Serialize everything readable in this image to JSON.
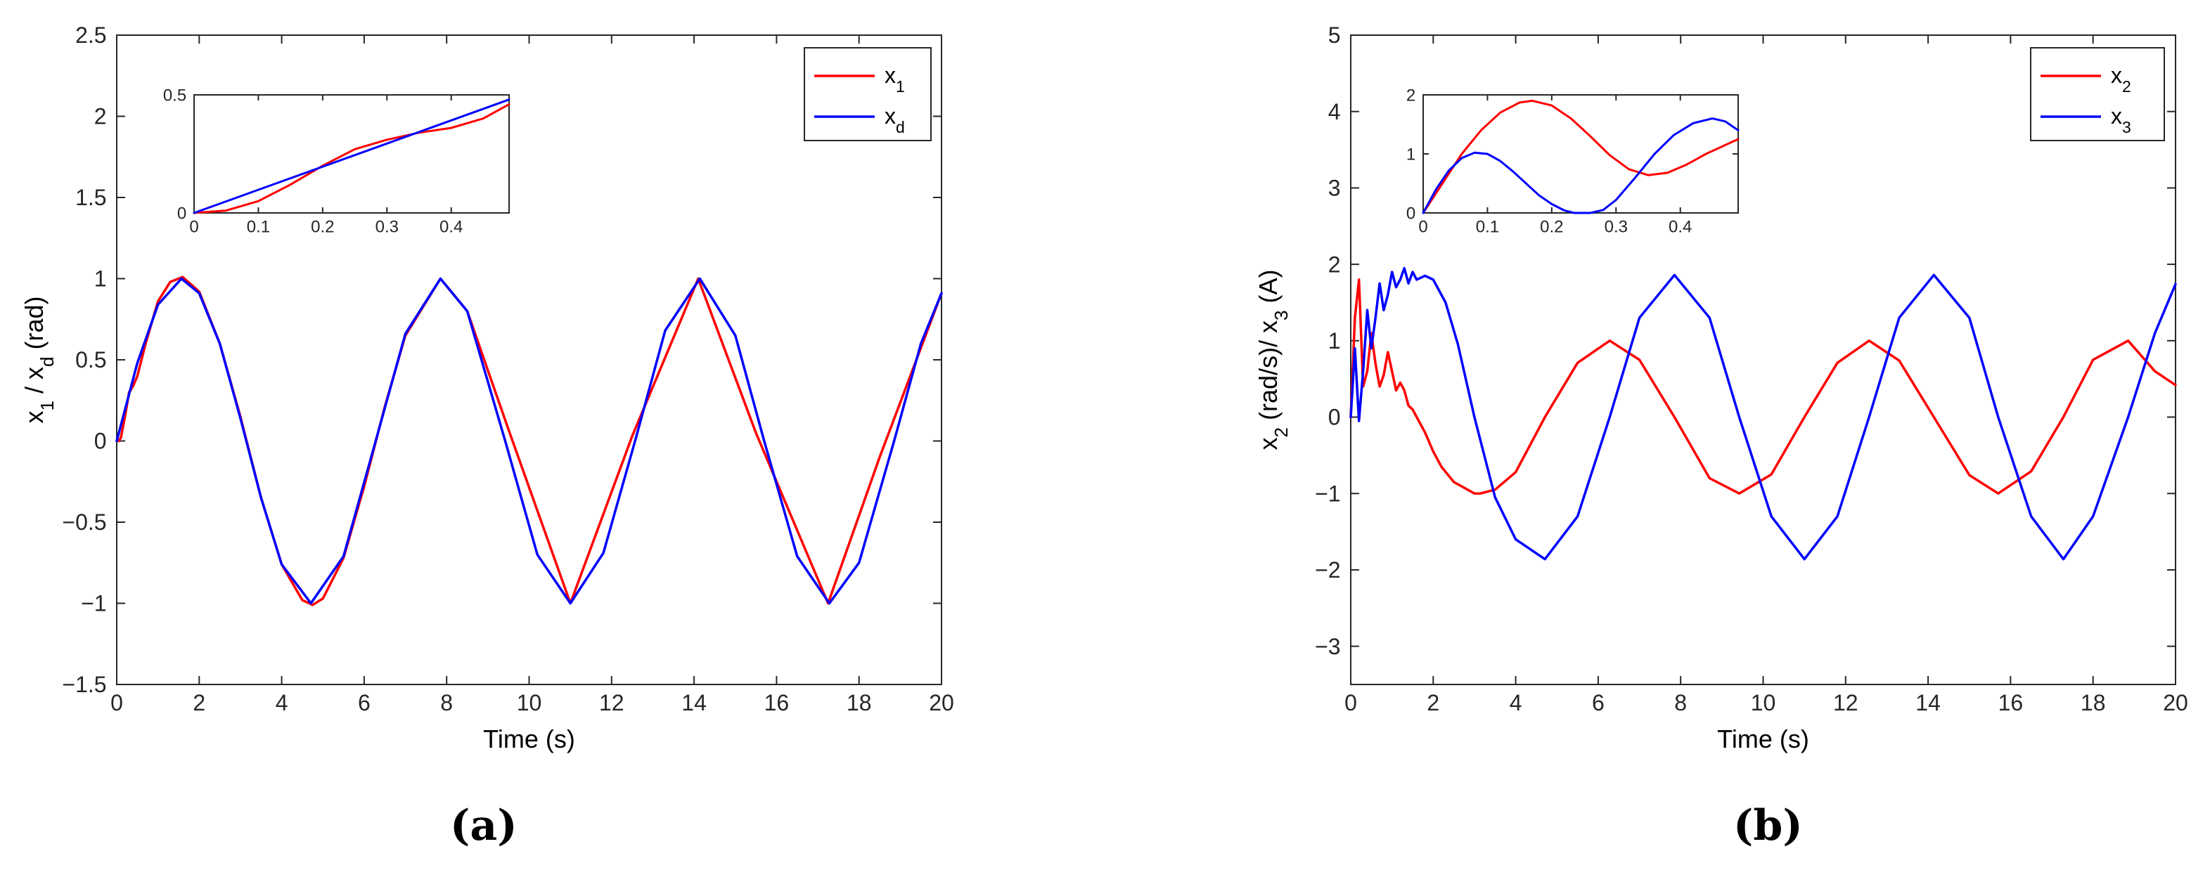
{
  "chart_data": [
    {
      "id": "a",
      "type": "line",
      "panel_label": "(a)",
      "title": "",
      "xlabel": "Time (s)",
      "ylabel": "x_1 / x_d (rad)",
      "xlim": [
        0,
        20
      ],
      "ylim": [
        -1.5,
        2.5
      ],
      "xticks": [
        0,
        2,
        4,
        6,
        8,
        10,
        12,
        14,
        16,
        18,
        20
      ],
      "xtick_labels": [
        "0",
        "2",
        "4",
        "6",
        "8",
        "10",
        "12",
        "14",
        "16",
        "18",
        "20"
      ],
      "yticks": [
        -1.5,
        -1,
        -0.5,
        0,
        0.5,
        1,
        1.5,
        2,
        2.5
      ],
      "ytick_labels": [
        "−1.5",
        "−1",
        "−0.5",
        "0",
        "0.5",
        "1",
        "1.5",
        "2",
        "2.5"
      ],
      "grid": false,
      "legend_position": "top-right",
      "series": [
        {
          "name": "x_1",
          "color": "#ff0000",
          "x": [
            0,
            0.05,
            0.1,
            0.2,
            0.3,
            0.4,
            0.5,
            0.7,
            1.0,
            1.3,
            1.6,
            2.0,
            2.5,
            3.0,
            3.5,
            4.0,
            4.5,
            4.75,
            5.0,
            5.5,
            6.0,
            6.5,
            7.0,
            7.85,
            8.5,
            9.5,
            11.0,
            12.5,
            14.1,
            15.5,
            17.25,
            18.5,
            20.0
          ],
          "y": [
            0,
            0.0,
            0.02,
            0.15,
            0.3,
            0.34,
            0.4,
            0.6,
            0.86,
            0.98,
            1.01,
            0.92,
            0.6,
            0.15,
            -0.35,
            -0.76,
            -0.98,
            -1.01,
            -0.97,
            -0.72,
            -0.28,
            0.21,
            0.65,
            1.0,
            0.8,
            0.07,
            -1.0,
            0.03,
            1.0,
            0.05,
            -1.0,
            -0.1,
            0.91
          ]
        },
        {
          "name": "x_d",
          "color": "#0000ff",
          "x": [
            0,
            0.5,
            1.0,
            1.57,
            2.0,
            2.5,
            3.0,
            3.5,
            4.0,
            4.71,
            5.5,
            6.28,
            7.0,
            7.85,
            8.5,
            9.42,
            10.2,
            11.0,
            11.8,
            12.57,
            13.3,
            14.14,
            15.0,
            15.7,
            16.5,
            17.28,
            18.0,
            18.85,
            19.5,
            20.0
          ],
          "y": [
            0,
            0.48,
            0.84,
            1.0,
            0.91,
            0.6,
            0.14,
            -0.35,
            -0.76,
            -1.0,
            -0.71,
            0.0,
            0.66,
            1.0,
            0.8,
            0.0,
            -0.7,
            -1.0,
            -0.69,
            0.0,
            0.68,
            1.0,
            0.65,
            0.0,
            -0.71,
            -1.0,
            -0.75,
            0.0,
            0.6,
            0.91
          ]
        }
      ],
      "inset": {
        "xlim": [
          0,
          0.49
        ],
        "ylim": [
          0,
          0.5
        ],
        "xticks": [
          0,
          0.1,
          0.2,
          0.3,
          0.4
        ],
        "xtick_labels": [
          "0",
          "0.1",
          "0.2",
          "0.3",
          "0.4"
        ],
        "yticks": [
          0,
          0.5
        ],
        "ytick_labels": [
          "0",
          "0.5"
        ],
        "series": [
          {
            "name": "x_1",
            "color": "#ff0000",
            "x": [
              0,
              0.05,
              0.1,
              0.15,
              0.2,
              0.25,
              0.3,
              0.35,
              0.4,
              0.45,
              0.49
            ],
            "y": [
              0,
              0.01,
              0.05,
              0.12,
              0.2,
              0.27,
              0.31,
              0.34,
              0.36,
              0.4,
              0.46
            ]
          },
          {
            "name": "x_d",
            "color": "#0000ff",
            "x": [
              0,
              0.49
            ],
            "y": [
              0,
              0.48
            ]
          }
        ]
      }
    },
    {
      "id": "b",
      "type": "line",
      "panel_label": "(b)",
      "title": "",
      "xlabel": "Time (s)",
      "ylabel": "x_2 (rad/s)/ x_3 (A)",
      "xlim": [
        0,
        20
      ],
      "ylim": [
        -3.5,
        5
      ],
      "xticks": [
        0,
        2,
        4,
        6,
        8,
        10,
        12,
        14,
        16,
        18,
        20
      ],
      "xtick_labels": [
        "0",
        "2",
        "4",
        "6",
        "8",
        "10",
        "12",
        "14",
        "16",
        "18",
        "20"
      ],
      "yticks": [
        -3,
        -2,
        -1,
        0,
        1,
        2,
        3,
        4,
        5
      ],
      "ytick_labels": [
        "−3",
        "−2",
        "−1",
        "0",
        "1",
        "2",
        "3",
        "4",
        "5"
      ],
      "grid": false,
      "legend_position": "top-right",
      "series": [
        {
          "name": "x_2",
          "color": "#ff0000",
          "x": [
            0,
            0.1,
            0.2,
            0.3,
            0.4,
            0.5,
            0.6,
            0.7,
            0.8,
            0.9,
            1.0,
            1.1,
            1.2,
            1.3,
            1.4,
            1.5,
            1.6,
            1.8,
            2.0,
            2.2,
            2.5,
            3.0,
            3.14,
            3.5,
            4.0,
            4.71,
            5.5,
            6.28,
            7.0,
            7.85,
            8.7,
            9.42,
            10.2,
            11.0,
            11.8,
            12.57,
            13.3,
            14.14,
            15.0,
            15.7,
            16.5,
            17.28,
            18.0,
            18.85,
            19.5,
            20.0
          ],
          "y": [
            0,
            1.3,
            1.8,
            0.4,
            0.6,
            1.1,
            0.7,
            0.4,
            0.55,
            0.85,
            0.6,
            0.35,
            0.45,
            0.35,
            0.15,
            0.1,
            0.0,
            -0.2,
            -0.45,
            -0.65,
            -0.85,
            -1.0,
            -1.0,
            -0.95,
            -0.72,
            0.0,
            0.71,
            1.0,
            0.75,
            0.0,
            -0.8,
            -1.0,
            -0.75,
            0.0,
            0.71,
            1.0,
            0.74,
            0.0,
            -0.76,
            -1.0,
            -0.71,
            0.0,
            0.75,
            1.0,
            0.6,
            0.42
          ]
        },
        {
          "name": "x_3",
          "color": "#0000ff",
          "x": [
            0,
            0.1,
            0.2,
            0.3,
            0.4,
            0.5,
            0.6,
            0.7,
            0.8,
            0.9,
            1.0,
            1.1,
            1.2,
            1.3,
            1.4,
            1.5,
            1.6,
            1.8,
            2.0,
            2.3,
            2.6,
            3.0,
            3.5,
            4.0,
            4.71,
            5.5,
            6.28,
            7.0,
            7.85,
            8.7,
            9.42,
            10.2,
            11.0,
            11.8,
            12.57,
            13.3,
            14.14,
            15.0,
            15.7,
            16.5,
            17.28,
            18.0,
            18.85,
            19.5,
            20.0
          ],
          "y": [
            0,
            0.9,
            -0.05,
            0.6,
            1.4,
            0.9,
            1.3,
            1.75,
            1.4,
            1.6,
            1.9,
            1.7,
            1.8,
            1.95,
            1.75,
            1.9,
            1.8,
            1.85,
            1.8,
            1.5,
            0.95,
            0.0,
            -1.05,
            -1.6,
            -1.86,
            -1.3,
            0.0,
            1.3,
            1.86,
            1.3,
            0.0,
            -1.3,
            -1.86,
            -1.3,
            0.0,
            1.3,
            1.86,
            1.3,
            0.0,
            -1.3,
            -1.86,
            -1.3,
            0.0,
            1.1,
            1.74
          ]
        }
      ],
      "inset": {
        "xlim": [
          0,
          0.49
        ],
        "ylim": [
          0,
          2
        ],
        "xticks": [
          0,
          0.1,
          0.2,
          0.3,
          0.4
        ],
        "xtick_labels": [
          "0",
          "0.1",
          "0.2",
          "0.3",
          "0.4"
        ],
        "yticks": [
          0,
          1,
          2
        ],
        "ytick_labels": [
          "0",
          "1",
          "2"
        ],
        "series": [
          {
            "name": "x_2",
            "color": "#ff0000",
            "x": [
              0,
              0.03,
              0.06,
              0.09,
              0.12,
              0.15,
              0.17,
              0.2,
              0.23,
              0.26,
              0.29,
              0.32,
              0.35,
              0.38,
              0.41,
              0.44,
              0.47,
              0.49
            ],
            "y": [
              0,
              0.5,
              1.0,
              1.4,
              1.7,
              1.87,
              1.9,
              1.82,
              1.6,
              1.3,
              0.98,
              0.74,
              0.64,
              0.68,
              0.82,
              1.0,
              1.15,
              1.25
            ]
          },
          {
            "name": "x_3",
            "color": "#0000ff",
            "x": [
              0,
              0.02,
              0.04,
              0.06,
              0.08,
              0.1,
              0.12,
              0.14,
              0.16,
              0.18,
              0.2,
              0.22,
              0.235,
              0.24,
              0.26,
              0.28,
              0.3,
              0.33,
              0.36,
              0.39,
              0.42,
              0.45,
              0.47,
              0.49
            ],
            "y": [
              0,
              0.4,
              0.72,
              0.93,
              1.02,
              1.0,
              0.88,
              0.7,
              0.5,
              0.3,
              0.15,
              0.04,
              0.0,
              0.0,
              0.0,
              0.05,
              0.22,
              0.6,
              1.0,
              1.32,
              1.52,
              1.6,
              1.55,
              1.4
            ]
          }
        ]
      }
    }
  ]
}
